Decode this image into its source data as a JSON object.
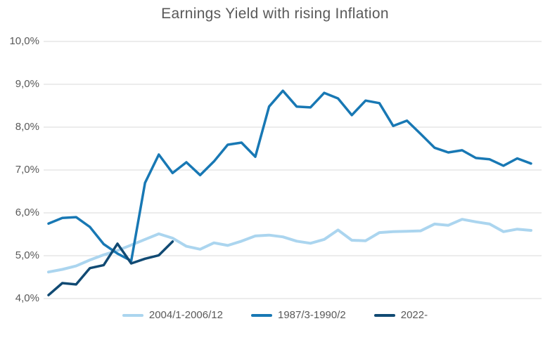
{
  "page": {
    "background": "#FFFFFF"
  },
  "chart_data": {
    "type": "line",
    "title": "Earnings Yield with rising Inflation",
    "title_color": "#595959",
    "xlabel": "",
    "ylabel": "",
    "x_unit": "months within each period (no x tick labels shown)",
    "ylim": [
      4.0,
      10.0
    ],
    "y_tick_labels": [
      "10,0%",
      "9,0%",
      "8,0%",
      "7,0%",
      "6,0%",
      "5,0%",
      "4,0%"
    ],
    "y_tick_values": [
      10.0,
      9.0,
      8.0,
      7.0,
      6.0,
      5.0,
      4.0
    ],
    "decimal_separator": ",",
    "grid": true,
    "gridline_color": "#D9D9D9",
    "axis_label_color": "#595959",
    "legend_position": "bottom",
    "legend_text_color": "#595959",
    "series": [
      {
        "name": "2004/1-2006/12",
        "color": "#ABD5EF",
        "values": [
          4.62,
          4.68,
          4.76,
          4.9,
          5.02,
          5.12,
          5.25,
          5.38,
          5.51,
          5.41,
          5.22,
          5.15,
          5.3,
          5.24,
          5.34,
          5.46,
          5.48,
          5.44,
          5.34,
          5.29,
          5.38,
          5.6,
          5.36,
          5.35,
          5.54,
          5.56,
          5.57,
          5.58,
          5.74,
          5.71,
          5.85,
          5.79,
          5.74,
          5.56,
          5.62,
          5.59
        ]
      },
      {
        "name": "1987/3-1990/2",
        "color": "#1878B4",
        "values": [
          5.75,
          5.88,
          5.9,
          5.67,
          5.27,
          5.05,
          4.88,
          6.7,
          7.36,
          6.93,
          7.18,
          6.88,
          7.2,
          7.59,
          7.64,
          7.31,
          8.48,
          8.85,
          8.48,
          8.46,
          8.8,
          8.67,
          8.28,
          8.62,
          8.56,
          8.03,
          8.15,
          7.84,
          7.52,
          7.41,
          7.46,
          7.28,
          7.25,
          7.1,
          7.27,
          7.15
        ]
      },
      {
        "name": "2022-",
        "color": "#114A73",
        "values": [
          4.08,
          4.36,
          4.33,
          4.71,
          4.78,
          5.28,
          4.82,
          4.93,
          5.01,
          5.33
        ]
      }
    ]
  }
}
